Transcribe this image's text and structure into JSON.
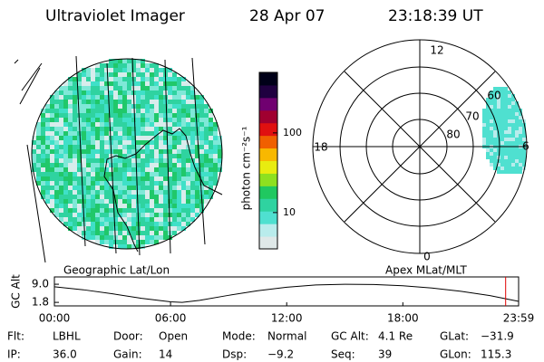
{
  "header": {
    "title": "Ultraviolet Imager",
    "date": "28 Apr 07",
    "time": "23:18:39 UT"
  },
  "geo_panel": {
    "label": "Geographic Lat/Lon"
  },
  "polar_panel": {
    "label": "Apex MLat/MLT",
    "mlt_labels": {
      "top": "12",
      "left": "18",
      "right": "6",
      "bottom": "0"
    },
    "lat_labels": [
      "60",
      "70",
      "80"
    ]
  },
  "colorbar": {
    "label": "photon cm⁻²s⁻¹",
    "log": true,
    "ylim": [
      3.5,
      575
    ],
    "yticks": [
      10,
      100
    ],
    "colors": [
      "#dfe8e8",
      "#b9ecec",
      "#4fe0d0",
      "#2fd3a0",
      "#20c860",
      "#8ee020",
      "#e8ec10",
      "#f8b800",
      "#f06000",
      "#e01010",
      "#a00030",
      "#700070",
      "#200040",
      "#000018"
    ]
  },
  "altitude_plot": {
    "y_label": "GC Alt",
    "x": [
      0,
      1.5,
      3,
      4.5,
      6,
      6.6,
      7.5,
      9,
      10.5,
      12,
      13.5,
      15,
      16.5,
      18,
      19.5,
      21,
      22.5,
      23.98
    ],
    "values": [
      8.0,
      6.8,
      5.2,
      3.4,
      2.0,
      1.8,
      2.6,
      4.6,
      6.4,
      7.8,
      8.7,
      9.0,
      8.9,
      8.4,
      7.5,
      6.2,
      4.5,
      2.2
    ],
    "color": "#000000",
    "xlim": [
      0,
      23.98
    ],
    "ylim": [
      0.4,
      11.9
    ],
    "xticks": [
      {
        "value": 0,
        "label": "00:00"
      },
      {
        "value": 6,
        "label": "06:00"
      },
      {
        "value": 12,
        "label": "12:00"
      },
      {
        "value": 18,
        "label": "18:00"
      },
      {
        "value": 23.98,
        "label": "23:59"
      }
    ],
    "yticks": [
      {
        "value": 9.0,
        "label": "9.0"
      },
      1.8
    ],
    "marker": {
      "x": 23.31,
      "color": "#e00000"
    }
  },
  "footer": [
    {
      "label": "Flt:",
      "value": "LBHL"
    },
    {
      "label": "Door:",
      "value": "Open"
    },
    {
      "label": "Mode:",
      "value": "Normal"
    },
    {
      "label": "GC Alt:",
      "value": "4.1 Re"
    },
    {
      "label": "GLat:",
      "value": "−31.9"
    },
    {
      "label": "IP:",
      "value": "36.0"
    },
    {
      "label": "Gain:",
      "value": "14"
    },
    {
      "label": "Dsp:",
      "value": "−9.2"
    },
    {
      "label": "Seq:",
      "value": "39"
    },
    {
      "label": "GLon:",
      "value": "115.3"
    }
  ]
}
